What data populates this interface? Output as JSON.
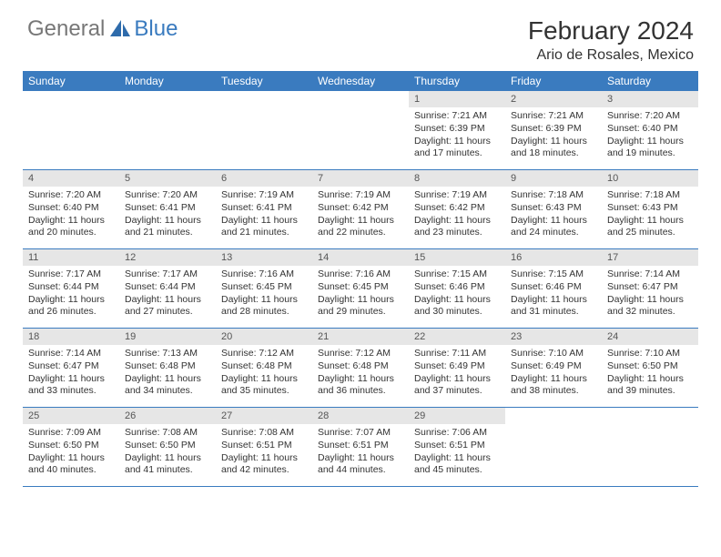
{
  "logo": {
    "general": "General",
    "blue": "Blue"
  },
  "title": "February 2024",
  "location": "Ario de Rosales, Mexico",
  "colors": {
    "header_bar": "#3a7bbf",
    "daynum_bg": "#e6e6e6",
    "row_border": "#3a7bbf",
    "text": "#333333",
    "background": "#ffffff"
  },
  "weekdays": [
    "Sunday",
    "Monday",
    "Tuesday",
    "Wednesday",
    "Thursday",
    "Friday",
    "Saturday"
  ],
  "weeks": [
    [
      null,
      null,
      null,
      null,
      {
        "d": "1",
        "sr": "Sunrise: 7:21 AM",
        "ss": "Sunset: 6:39 PM",
        "dl1": "Daylight: 11 hours",
        "dl2": "and 17 minutes."
      },
      {
        "d": "2",
        "sr": "Sunrise: 7:21 AM",
        "ss": "Sunset: 6:39 PM",
        "dl1": "Daylight: 11 hours",
        "dl2": "and 18 minutes."
      },
      {
        "d": "3",
        "sr": "Sunrise: 7:20 AM",
        "ss": "Sunset: 6:40 PM",
        "dl1": "Daylight: 11 hours",
        "dl2": "and 19 minutes."
      }
    ],
    [
      {
        "d": "4",
        "sr": "Sunrise: 7:20 AM",
        "ss": "Sunset: 6:40 PM",
        "dl1": "Daylight: 11 hours",
        "dl2": "and 20 minutes."
      },
      {
        "d": "5",
        "sr": "Sunrise: 7:20 AM",
        "ss": "Sunset: 6:41 PM",
        "dl1": "Daylight: 11 hours",
        "dl2": "and 21 minutes."
      },
      {
        "d": "6",
        "sr": "Sunrise: 7:19 AM",
        "ss": "Sunset: 6:41 PM",
        "dl1": "Daylight: 11 hours",
        "dl2": "and 21 minutes."
      },
      {
        "d": "7",
        "sr": "Sunrise: 7:19 AM",
        "ss": "Sunset: 6:42 PM",
        "dl1": "Daylight: 11 hours",
        "dl2": "and 22 minutes."
      },
      {
        "d": "8",
        "sr": "Sunrise: 7:19 AM",
        "ss": "Sunset: 6:42 PM",
        "dl1": "Daylight: 11 hours",
        "dl2": "and 23 minutes."
      },
      {
        "d": "9",
        "sr": "Sunrise: 7:18 AM",
        "ss": "Sunset: 6:43 PM",
        "dl1": "Daylight: 11 hours",
        "dl2": "and 24 minutes."
      },
      {
        "d": "10",
        "sr": "Sunrise: 7:18 AM",
        "ss": "Sunset: 6:43 PM",
        "dl1": "Daylight: 11 hours",
        "dl2": "and 25 minutes."
      }
    ],
    [
      {
        "d": "11",
        "sr": "Sunrise: 7:17 AM",
        "ss": "Sunset: 6:44 PM",
        "dl1": "Daylight: 11 hours",
        "dl2": "and 26 minutes."
      },
      {
        "d": "12",
        "sr": "Sunrise: 7:17 AM",
        "ss": "Sunset: 6:44 PM",
        "dl1": "Daylight: 11 hours",
        "dl2": "and 27 minutes."
      },
      {
        "d": "13",
        "sr": "Sunrise: 7:16 AM",
        "ss": "Sunset: 6:45 PM",
        "dl1": "Daylight: 11 hours",
        "dl2": "and 28 minutes."
      },
      {
        "d": "14",
        "sr": "Sunrise: 7:16 AM",
        "ss": "Sunset: 6:45 PM",
        "dl1": "Daylight: 11 hours",
        "dl2": "and 29 minutes."
      },
      {
        "d": "15",
        "sr": "Sunrise: 7:15 AM",
        "ss": "Sunset: 6:46 PM",
        "dl1": "Daylight: 11 hours",
        "dl2": "and 30 minutes."
      },
      {
        "d": "16",
        "sr": "Sunrise: 7:15 AM",
        "ss": "Sunset: 6:46 PM",
        "dl1": "Daylight: 11 hours",
        "dl2": "and 31 minutes."
      },
      {
        "d": "17",
        "sr": "Sunrise: 7:14 AM",
        "ss": "Sunset: 6:47 PM",
        "dl1": "Daylight: 11 hours",
        "dl2": "and 32 minutes."
      }
    ],
    [
      {
        "d": "18",
        "sr": "Sunrise: 7:14 AM",
        "ss": "Sunset: 6:47 PM",
        "dl1": "Daylight: 11 hours",
        "dl2": "and 33 minutes."
      },
      {
        "d": "19",
        "sr": "Sunrise: 7:13 AM",
        "ss": "Sunset: 6:48 PM",
        "dl1": "Daylight: 11 hours",
        "dl2": "and 34 minutes."
      },
      {
        "d": "20",
        "sr": "Sunrise: 7:12 AM",
        "ss": "Sunset: 6:48 PM",
        "dl1": "Daylight: 11 hours",
        "dl2": "and 35 minutes."
      },
      {
        "d": "21",
        "sr": "Sunrise: 7:12 AM",
        "ss": "Sunset: 6:48 PM",
        "dl1": "Daylight: 11 hours",
        "dl2": "and 36 minutes."
      },
      {
        "d": "22",
        "sr": "Sunrise: 7:11 AM",
        "ss": "Sunset: 6:49 PM",
        "dl1": "Daylight: 11 hours",
        "dl2": "and 37 minutes."
      },
      {
        "d": "23",
        "sr": "Sunrise: 7:10 AM",
        "ss": "Sunset: 6:49 PM",
        "dl1": "Daylight: 11 hours",
        "dl2": "and 38 minutes."
      },
      {
        "d": "24",
        "sr": "Sunrise: 7:10 AM",
        "ss": "Sunset: 6:50 PM",
        "dl1": "Daylight: 11 hours",
        "dl2": "and 39 minutes."
      }
    ],
    [
      {
        "d": "25",
        "sr": "Sunrise: 7:09 AM",
        "ss": "Sunset: 6:50 PM",
        "dl1": "Daylight: 11 hours",
        "dl2": "and 40 minutes."
      },
      {
        "d": "26",
        "sr": "Sunrise: 7:08 AM",
        "ss": "Sunset: 6:50 PM",
        "dl1": "Daylight: 11 hours",
        "dl2": "and 41 minutes."
      },
      {
        "d": "27",
        "sr": "Sunrise: 7:08 AM",
        "ss": "Sunset: 6:51 PM",
        "dl1": "Daylight: 11 hours",
        "dl2": "and 42 minutes."
      },
      {
        "d": "28",
        "sr": "Sunrise: 7:07 AM",
        "ss": "Sunset: 6:51 PM",
        "dl1": "Daylight: 11 hours",
        "dl2": "and 44 minutes."
      },
      {
        "d": "29",
        "sr": "Sunrise: 7:06 AM",
        "ss": "Sunset: 6:51 PM",
        "dl1": "Daylight: 11 hours",
        "dl2": "and 45 minutes."
      },
      null,
      null
    ]
  ]
}
